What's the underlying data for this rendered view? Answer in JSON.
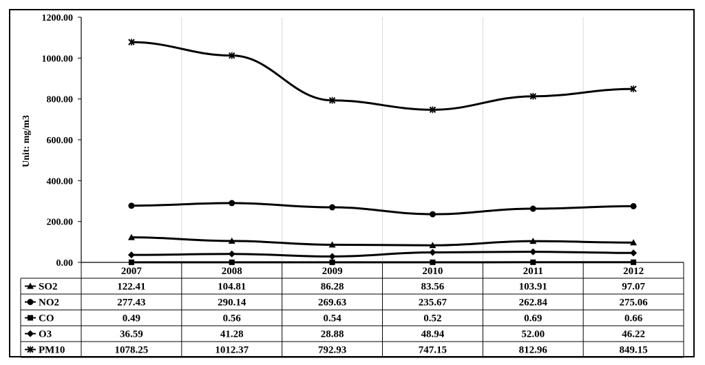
{
  "chart_data": {
    "type": "line",
    "ylabel": "Unit:  mg/m3",
    "ylim": [
      0,
      1200
    ],
    "y_ticks": [
      "0.00",
      "200.00",
      "400.00",
      "600.00",
      "800.00",
      "1000.00",
      "1200.00"
    ],
    "categories": [
      "2007",
      "2008",
      "2009",
      "2010",
      "2011",
      "2012"
    ],
    "grid": "vertical",
    "legend": "data-table-below",
    "series": [
      {
        "name": "SO2",
        "marker": "triangle",
        "values": [
          122.41,
          104.81,
          86.28,
          83.56,
          103.91,
          97.07
        ],
        "labels": [
          "122.41",
          "104.81",
          "86.28",
          "83.56",
          "103.91",
          "97.07"
        ]
      },
      {
        "name": "NO2",
        "marker": "circle",
        "values": [
          277.43,
          290.14,
          269.63,
          235.67,
          262.84,
          275.06
        ],
        "labels": [
          "277.43",
          "290.14",
          "269.63",
          "235.67",
          "262.84",
          "275.06"
        ]
      },
      {
        "name": "CO",
        "marker": "square",
        "values": [
          0.49,
          0.56,
          0.54,
          0.52,
          0.69,
          0.66
        ],
        "labels": [
          "0.49",
          "0.56",
          "0.54",
          "0.52",
          "0.69",
          "0.66"
        ]
      },
      {
        "name": "O3",
        "marker": "diamond",
        "values": [
          36.59,
          41.28,
          28.88,
          48.94,
          52.0,
          46.22
        ],
        "labels": [
          "36.59",
          "41.28",
          "28.88",
          "48.94",
          "52.00",
          "46.22"
        ]
      },
      {
        "name": "PM10",
        "marker": "star",
        "values": [
          1078.25,
          1012.37,
          792.93,
          747.15,
          812.96,
          849.15
        ],
        "labels": [
          "1078.25",
          "1012.37",
          "792.93",
          "747.15",
          "812.96",
          "849.15"
        ]
      }
    ],
    "line_color": "#000000",
    "grid_color": "#d9d9d9"
  }
}
